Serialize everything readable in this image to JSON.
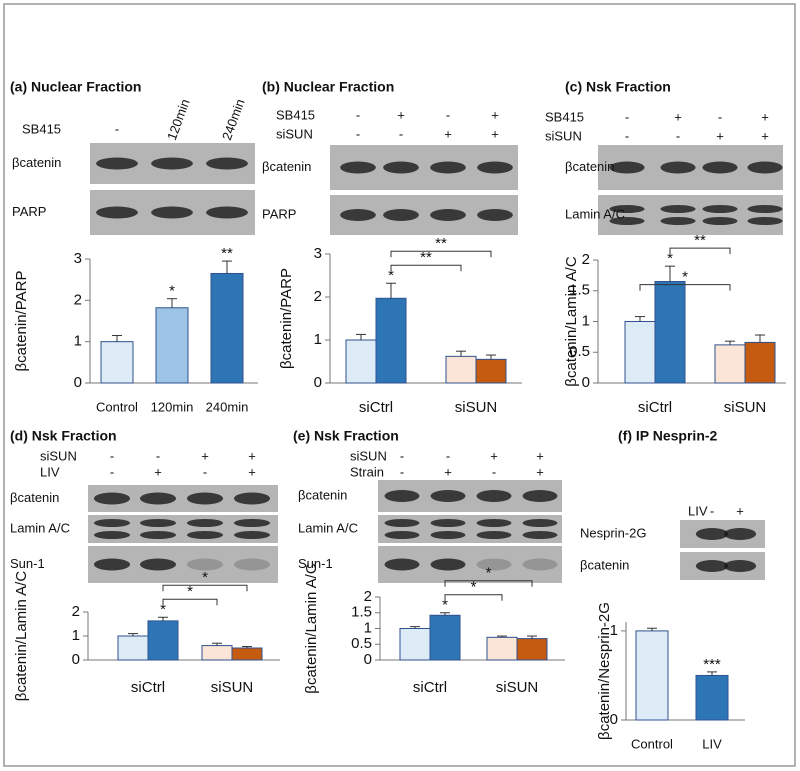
{
  "chart_data": [
    {
      "type": "bar",
      "title": "(a) Nuclear Fraction",
      "conditions": [
        {
          "name": "SB415",
          "labels": [
            "-",
            "120min",
            "240min"
          ]
        }
      ],
      "blots": [
        "βcatenin",
        "PARP"
      ],
      "ylabel": "βcatenin/PARP",
      "categories": [
        "Control",
        "120min",
        "240min"
      ],
      "series": [
        {
          "colors": [
            "#ddebf7",
            "#9dc3e6",
            "#2e75b6"
          ],
          "values": [
            1.0,
            1.82,
            2.65
          ],
          "errors": [
            0.15,
            0.22,
            0.3
          ],
          "marks": [
            null,
            "*",
            "**"
          ]
        }
      ],
      "ylim": [
        0,
        3
      ],
      "yticks": [
        0,
        1,
        2,
        3
      ],
      "brackets": []
    },
    {
      "type": "bar",
      "title": "(b) Nuclear Fraction",
      "conditions": [
        {
          "name": "SB415",
          "labels": [
            "-",
            "+",
            "-",
            "+"
          ]
        },
        {
          "name": "siSUN",
          "labels": [
            "-",
            "-",
            "+",
            "+"
          ]
        }
      ],
      "blots": [
        "βcatenin",
        "PARP"
      ],
      "ylabel": "βcatenin/PARP",
      "categories": [
        "siCtrl",
        "siSUN"
      ],
      "series": [
        {
          "colors": [
            "#ddebf7",
            "#fbe5d6"
          ],
          "values": [
            1.0,
            0.62
          ],
          "errors": [
            0.13,
            0.12
          ],
          "marks": [
            null,
            null
          ]
        },
        {
          "colors": [
            "#2e75b6",
            "#c55a11"
          ],
          "values": [
            1.97,
            0.55
          ],
          "errors": [
            0.35,
            0.1
          ],
          "marks": [
            "*",
            null
          ]
        }
      ],
      "ylim": [
        0,
        3
      ],
      "yticks": [
        0,
        1,
        2,
        3
      ],
      "brackets": [
        "**",
        "**"
      ]
    },
    {
      "type": "bar",
      "title": "(c) Nsk Fraction",
      "conditions": [
        {
          "name": "SB415",
          "labels": [
            "-",
            "+",
            "-",
            "+"
          ]
        },
        {
          "name": "siSUN",
          "labels": [
            "-",
            "-",
            "+",
            "+"
          ]
        }
      ],
      "blots": [
        "βcatenin",
        "Lamin A/C"
      ],
      "ylabel": "βcatenin/Lamin A/C",
      "categories": [
        "siCtrl",
        "siSUN"
      ],
      "series": [
        {
          "colors": [
            "#ddebf7",
            "#fbe5d6"
          ],
          "values": [
            1.0,
            0.62
          ],
          "errors": [
            0.08,
            0.06
          ],
          "marks": [
            null,
            null
          ]
        },
        {
          "colors": [
            "#2e75b6",
            "#c55a11"
          ],
          "values": [
            1.65,
            0.66
          ],
          "errors": [
            0.25,
            0.12
          ],
          "marks": [
            "*",
            null
          ]
        }
      ],
      "ylim": [
        0,
        2
      ],
      "yticks": [
        0,
        0.5,
        1,
        1.5,
        2
      ],
      "brackets": [
        "*",
        "**"
      ]
    },
    {
      "type": "bar",
      "title": "(d) Nsk Fraction",
      "conditions": [
        {
          "name": "siSUN",
          "labels": [
            "-",
            "-",
            "+",
            "+"
          ]
        },
        {
          "name": "LIV",
          "labels": [
            "-",
            "+",
            "-",
            "+"
          ]
        }
      ],
      "blots": [
        "βcatenin",
        "Lamin A/C",
        "Sun-1"
      ],
      "ylabel": "βcatenin/Lamin A/C",
      "categories": [
        "siCtrl",
        "siSUN"
      ],
      "series": [
        {
          "colors": [
            "#ddebf7",
            "#fbe5d6"
          ],
          "values": [
            1.0,
            0.6
          ],
          "errors": [
            0.1,
            0.1
          ],
          "marks": [
            null,
            null
          ]
        },
        {
          "colors": [
            "#2e75b6",
            "#c55a11"
          ],
          "values": [
            1.63,
            0.5
          ],
          "errors": [
            0.15,
            0.06
          ],
          "marks": [
            "*",
            null
          ]
        }
      ],
      "ylim": [
        0,
        2
      ],
      "yticks": [
        0,
        1,
        2
      ],
      "brackets": [
        "*",
        "*"
      ]
    },
    {
      "type": "bar",
      "title": "(e) Nsk Fraction",
      "conditions": [
        {
          "name": "siSUN",
          "labels": [
            "-",
            "-",
            "+",
            "+"
          ]
        },
        {
          "name": "Strain",
          "labels": [
            "-",
            "+",
            "-",
            "+"
          ]
        }
      ],
      "blots": [
        "βcatenin",
        "Lamin A/C",
        "Sun-1"
      ],
      "ylabel": "βcatenin/Lamin A/C",
      "categories": [
        "siCtrl",
        "siSUN"
      ],
      "series": [
        {
          "colors": [
            "#ddebf7",
            "#fbe5d6"
          ],
          "values": [
            1.0,
            0.72
          ],
          "errors": [
            0.06,
            0.04
          ],
          "marks": [
            null,
            null
          ]
        },
        {
          "colors": [
            "#2e75b6",
            "#c55a11"
          ],
          "values": [
            1.42,
            0.68
          ],
          "errors": [
            0.08,
            0.08
          ],
          "marks": [
            "*",
            null
          ]
        }
      ],
      "ylim": [
        0,
        2
      ],
      "yticks": [
        0,
        0.5,
        1,
        1.5,
        2
      ],
      "brackets": [
        "*",
        "*"
      ]
    },
    {
      "type": "bar",
      "title": "(f) IP Nesprin-2",
      "conditions": [
        {
          "name": "LIV",
          "labels": [
            "-",
            "+"
          ]
        }
      ],
      "blots": [
        "Nesprin-2G",
        "βcatenin"
      ],
      "ylabel": "βcatenin/Nesprin-2G",
      "categories": [
        "Control",
        "LIV"
      ],
      "series": [
        {
          "colors": [
            "#ddebf7",
            "#2e75b6"
          ],
          "values": [
            1.0,
            0.5
          ],
          "errors": [
            0.03,
            0.04
          ],
          "marks": [
            null,
            "***"
          ]
        }
      ],
      "ylim": [
        0,
        1.1
      ],
      "yticks": [
        0,
        1
      ],
      "brackets": []
    }
  ]
}
